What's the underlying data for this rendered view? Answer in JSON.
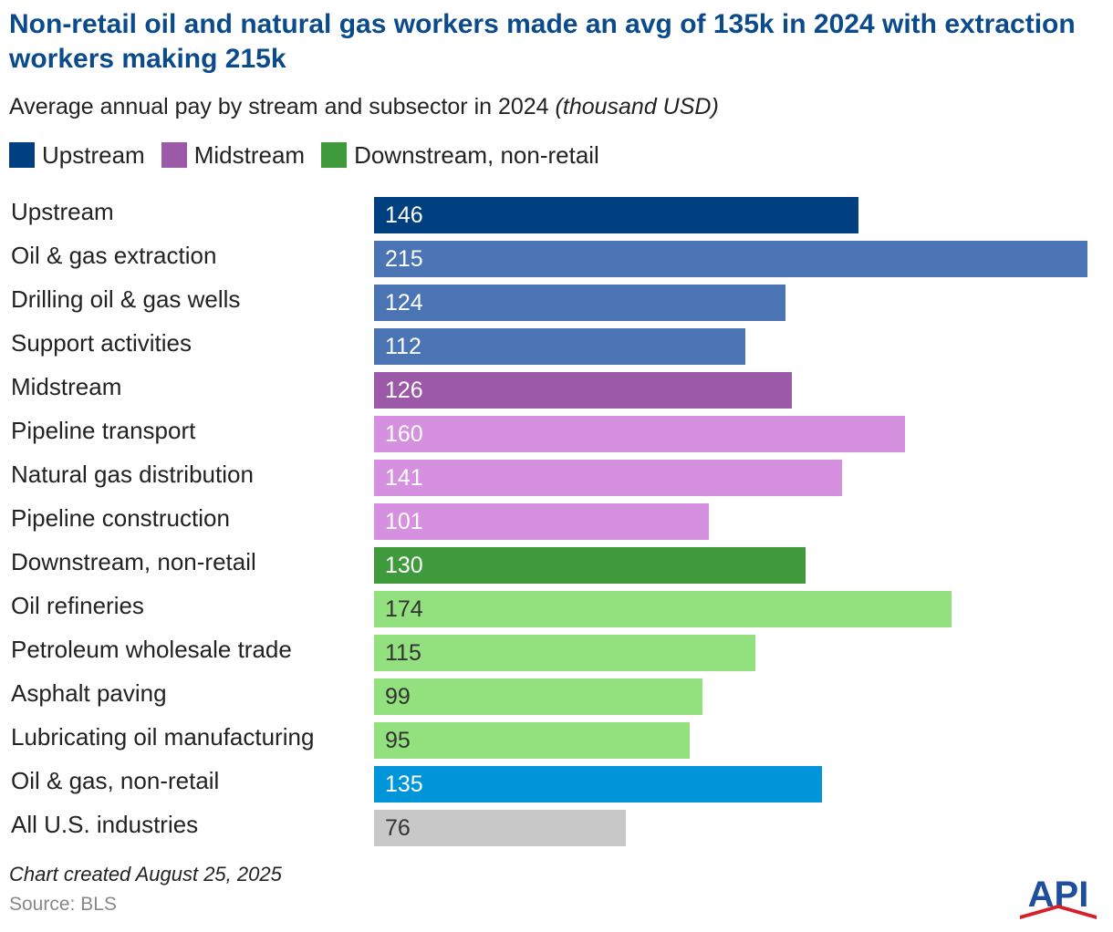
{
  "title": "Non-retail oil and natural gas workers made an avg of 135k in 2024 with extraction workers making 215k",
  "subtitle": "Average annual pay by stream and subsector in 2024",
  "subtitle_unit": "(thousand USD)",
  "legend": [
    {
      "label": "Upstream",
      "color": "#004080"
    },
    {
      "label": "Midstream",
      "color": "#9b59a8"
    },
    {
      "label": "Downstream, non-retail",
      "color": "#3f9a3c"
    }
  ],
  "chart_data": {
    "type": "bar",
    "orientation": "horizontal",
    "title": "Non-retail oil and natural gas workers made an avg of 135k in 2024 with extraction workers making 215k",
    "subtitle": "Average annual pay by stream and subsector in 2024 (thousand USD)",
    "xlabel": "",
    "ylabel": "",
    "xlim": [
      0,
      215
    ],
    "grid": false,
    "legend_position": "top-left",
    "categories": [
      "Upstream",
      "Oil & gas extraction",
      "Drilling oil & gas wells",
      "Support activities",
      "Midstream",
      "Pipeline transport",
      "Natural gas distribution",
      "Pipeline construction",
      "Downstream, non-retail",
      "Oil refineries",
      "Petroleum wholesale trade",
      "Asphalt paving",
      "Lubricating oil manufacturing",
      "Oil & gas, non-retail",
      "All U.S. industries"
    ],
    "values": [
      146,
      215,
      124,
      112,
      126,
      160,
      141,
      101,
      130,
      174,
      115,
      99,
      95,
      135,
      76
    ],
    "bar_colors": [
      "#004080",
      "#4a74b4",
      "#4a74b4",
      "#4a74b4",
      "#9b59a8",
      "#d690e0",
      "#d690e0",
      "#d690e0",
      "#3f9a3c",
      "#92e07e",
      "#92e07e",
      "#92e07e",
      "#92e07e",
      "#0095d9",
      "#c8c8c8"
    ],
    "label_colors": [
      "#ffffff",
      "#ffffff",
      "#ffffff",
      "#ffffff",
      "#ffffff",
      "#ffffff",
      "#ffffff",
      "#ffffff",
      "#ffffff",
      "#333333",
      "#333333",
      "#333333",
      "#333333",
      "#ffffff",
      "#333333"
    ]
  },
  "footnote": "Chart created August 25, 2025",
  "source": "Source: BLS",
  "logo": {
    "text": "API",
    "colors": {
      "primary": "#1f4e9c",
      "accent": "#d71f2b"
    }
  }
}
